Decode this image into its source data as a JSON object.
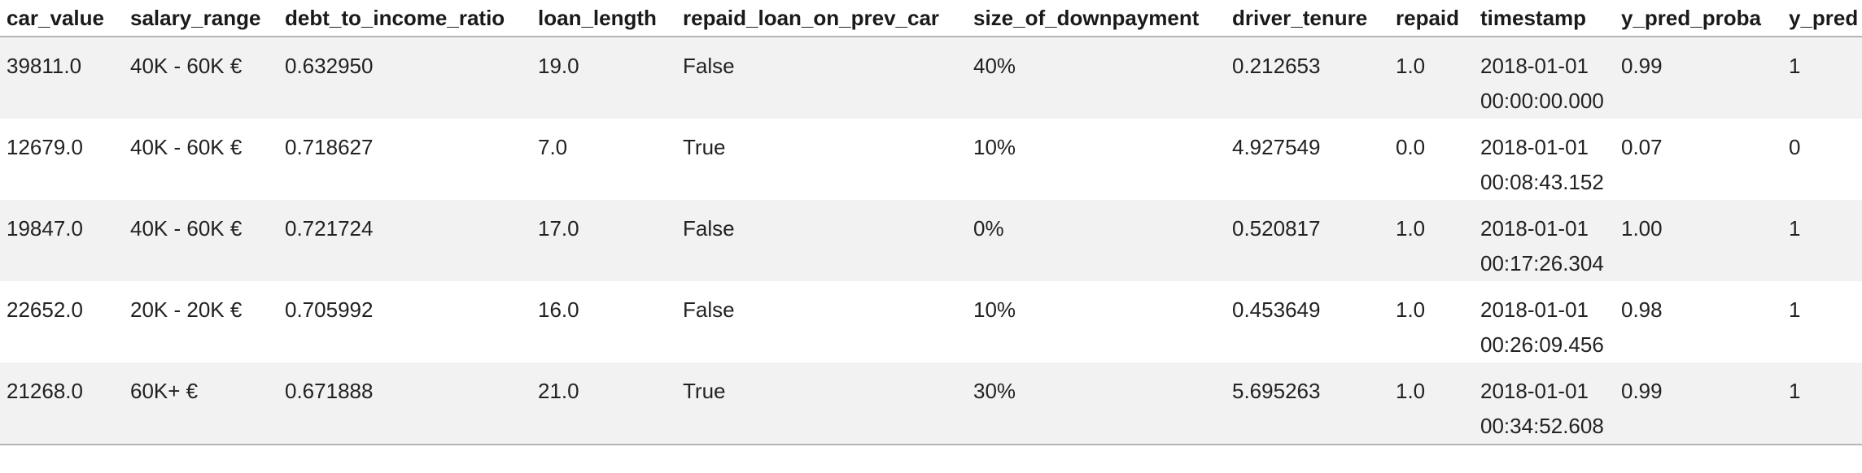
{
  "table": {
    "headers": [
      "car_value",
      "salary_range",
      "debt_to_income_ratio",
      "loan_length",
      "repaid_loan_on_prev_car",
      "size_of_downpayment",
      "driver_tenure",
      "repaid",
      "timestamp",
      "y_pred_proba",
      "y_pred"
    ],
    "rows": [
      {
        "car_value": "39811.0",
        "salary_range": "40K - 60K €",
        "debt_to_income_ratio": "0.632950",
        "loan_length": "19.0",
        "repaid_loan_on_prev_car": "False",
        "size_of_downpayment": "40%",
        "driver_tenure": "0.212653",
        "repaid": "1.0",
        "timestamp_date": "2018-01-01",
        "timestamp_time": "00:00:00.000",
        "y_pred_proba": "0.99",
        "y_pred": "1"
      },
      {
        "car_value": "12679.0",
        "salary_range": "40K - 60K €",
        "debt_to_income_ratio": "0.718627",
        "loan_length": "7.0",
        "repaid_loan_on_prev_car": "True",
        "size_of_downpayment": "10%",
        "driver_tenure": "4.927549",
        "repaid": "0.0",
        "timestamp_date": "2018-01-01",
        "timestamp_time": "00:08:43.152",
        "y_pred_proba": "0.07",
        "y_pred": "0"
      },
      {
        "car_value": "19847.0",
        "salary_range": "40K - 60K €",
        "debt_to_income_ratio": "0.721724",
        "loan_length": "17.0",
        "repaid_loan_on_prev_car": "False",
        "size_of_downpayment": "0%",
        "driver_tenure": "0.520817",
        "repaid": "1.0",
        "timestamp_date": "2018-01-01",
        "timestamp_time": "00:17:26.304",
        "y_pred_proba": "1.00",
        "y_pred": "1"
      },
      {
        "car_value": "22652.0",
        "salary_range": "20K - 20K €",
        "debt_to_income_ratio": "0.705992",
        "loan_length": "16.0",
        "repaid_loan_on_prev_car": "False",
        "size_of_downpayment": "10%",
        "driver_tenure": "0.453649",
        "repaid": "1.0",
        "timestamp_date": "2018-01-01",
        "timestamp_time": "00:26:09.456",
        "y_pred_proba": "0.98",
        "y_pred": "1"
      },
      {
        "car_value": "21268.0",
        "salary_range": "60K+ €",
        "debt_to_income_ratio": "0.671888",
        "loan_length": "21.0",
        "repaid_loan_on_prev_car": "True",
        "size_of_downpayment": "30%",
        "driver_tenure": "5.695263",
        "repaid": "1.0",
        "timestamp_date": "2018-01-01",
        "timestamp_time": "00:34:52.608",
        "y_pred_proba": "0.99",
        "y_pred": "1"
      }
    ]
  }
}
